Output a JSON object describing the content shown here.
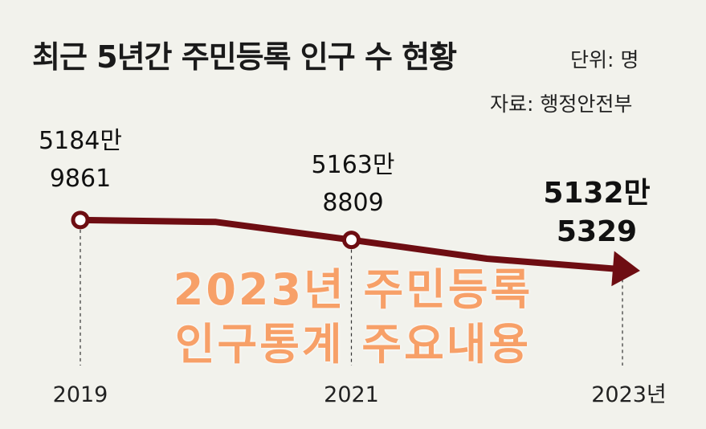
{
  "header": {
    "title": "최근 5년간 주민등록 인구 수 현황",
    "unit": "단위: 명",
    "source": "자료: 행정안전부"
  },
  "overlay": {
    "line1": "2023년 주민등록",
    "line2": "인구통계 주요내용"
  },
  "colors": {
    "line": "#6e0d12",
    "background": "#f2f2ec",
    "overlay_text": "#f7a068"
  },
  "chart_data": {
    "type": "line",
    "title": "최근 5년간 주민등록 인구 수 현황",
    "unit": "단위: 명",
    "source": "자료: 행정안전부",
    "x": [
      2019,
      2020,
      2021,
      2022,
      2023
    ],
    "x_tick_labels": [
      "2019",
      "2021",
      "2023년"
    ],
    "series": [
      {
        "values": [
          51849861,
          51829136,
          51638809,
          51439038,
          51325329
        ]
      }
    ],
    "labels": [
      {
        "x": 2019,
        "line1": "5184만",
        "line2": "9861",
        "emphasis": false
      },
      {
        "x": 2021,
        "line1": "5163만",
        "line2": "8809",
        "emphasis": false
      },
      {
        "x": 2023,
        "line1": "5132만",
        "line2": "5329",
        "emphasis": true
      }
    ],
    "ylim": [
      51200000,
      51900000
    ],
    "grid": false
  }
}
